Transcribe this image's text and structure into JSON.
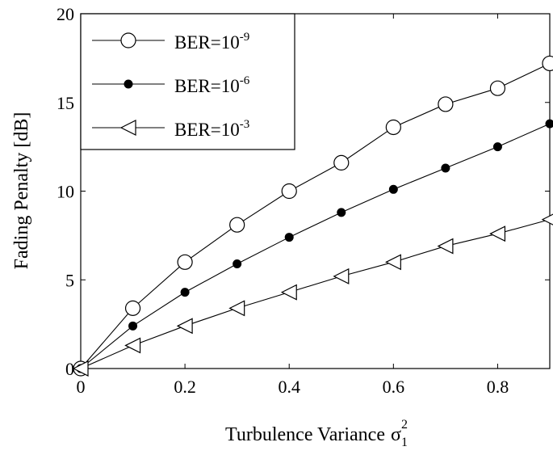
{
  "chart_data": {
    "type": "line",
    "xlabel": "Turbulence Variance",
    "xlabel_symbol": "σ",
    "xlabel_sub": "1",
    "xlabel_sup": "2",
    "ylabel": "Fading Penalty [dB]",
    "xlim": [
      0,
      0.9
    ],
    "ylim": [
      0,
      20
    ],
    "xticks": [
      0,
      0.2,
      0.4,
      0.6,
      0.8
    ],
    "xtick_labels": [
      "0",
      "0.2",
      "0.4",
      "0.6",
      "0.8"
    ],
    "yticks": [
      0,
      5,
      10,
      15,
      20
    ],
    "ytick_labels": [
      "0",
      "5",
      "10",
      "15",
      "20"
    ],
    "grid": false,
    "legend_position": "top-left",
    "x": [
      0,
      0.1,
      0.2,
      0.3,
      0.4,
      0.5,
      0.6,
      0.7,
      0.8,
      0.9
    ],
    "series": [
      {
        "name": "BER=10",
        "name_exp": "-9",
        "marker": "open-circle",
        "color": "#000000",
        "values": [
          0,
          3.4,
          6.0,
          8.1,
          10.0,
          11.6,
          13.6,
          14.9,
          15.8,
          17.2
        ]
      },
      {
        "name": "BER=10",
        "name_exp": "-6",
        "marker": "filled-circle",
        "color": "#000000",
        "values": [
          0,
          2.4,
          4.3,
          5.9,
          7.4,
          8.8,
          10.1,
          11.3,
          12.5,
          13.8
        ]
      },
      {
        "name": "BER=10",
        "name_exp": "-3",
        "marker": "open-left-triangle",
        "color": "#000000",
        "values": [
          0,
          1.3,
          2.4,
          3.4,
          4.3,
          5.2,
          6.0,
          6.9,
          7.6,
          8.4
        ]
      }
    ]
  }
}
